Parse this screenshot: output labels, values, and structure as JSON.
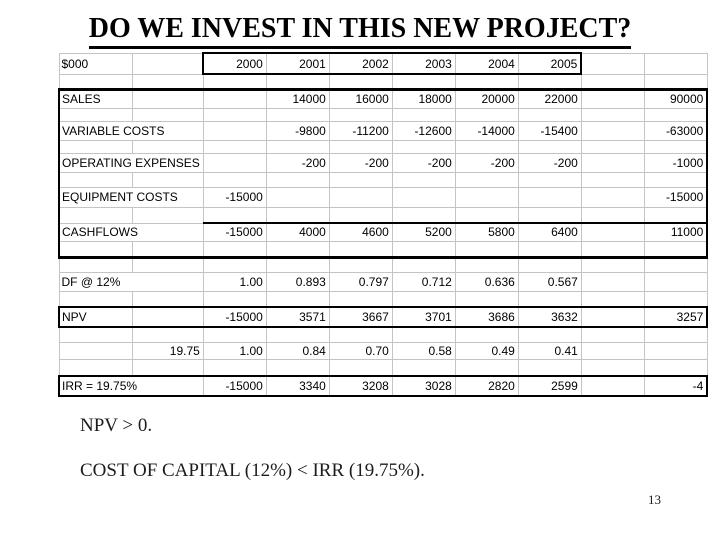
{
  "title": "DO WE INVEST IN THIS NEW PROJECT?",
  "table": {
    "rows": [
      {
        "name": "header-years",
        "values": [
          "$000",
          "",
          "2000",
          "2001",
          "2002",
          "2003",
          "2004",
          "2005",
          "",
          ""
        ]
      },
      {
        "name": "spacer-1",
        "values": [
          "",
          "",
          "",
          "",
          "",
          "",
          "",
          "",
          "",
          ""
        ]
      },
      {
        "name": "sales",
        "values": [
          "SALES",
          "",
          "",
          "14000",
          "16000",
          "18000",
          "20000",
          "22000",
          "",
          "90000"
        ]
      },
      {
        "name": "spacer-2",
        "values": [
          "",
          "",
          "",
          "",
          "",
          "",
          "",
          "",
          "",
          ""
        ]
      },
      {
        "name": "variable-costs",
        "values": [
          "VARIABLE COSTS",
          "",
          "",
          "-9800",
          "-11200",
          "-12600",
          "-14000",
          "-15400",
          "",
          "-63000"
        ]
      },
      {
        "name": "spacer-3",
        "values": [
          "",
          "",
          "",
          "",
          "",
          "",
          "",
          "",
          "",
          ""
        ]
      },
      {
        "name": "operating-expenses",
        "values": [
          "OPERATING EXPENSES",
          "",
          "",
          "-200",
          "-200",
          "-200",
          "-200",
          "-200",
          "",
          "-1000"
        ]
      },
      {
        "name": "spacer-4",
        "values": [
          "",
          "",
          "",
          "",
          "",
          "",
          "",
          "",
          "",
          ""
        ]
      },
      {
        "name": "equipment-costs",
        "values": [
          "EQUIPMENT COSTS",
          "",
          "-15000",
          "",
          "",
          "",
          "",
          "",
          "",
          "-15000"
        ]
      },
      {
        "name": "spacer-5",
        "values": [
          "",
          "",
          "",
          "",
          "",
          "",
          "",
          "",
          "",
          ""
        ]
      },
      {
        "name": "cashflows",
        "values": [
          "CASHFLOWS",
          "",
          "-15000",
          "4000",
          "4600",
          "5200",
          "5800",
          "6400",
          "",
          "11000"
        ]
      },
      {
        "name": "spacer-6",
        "values": [
          "",
          "",
          "",
          "",
          "",
          "",
          "",
          "",
          "",
          ""
        ]
      },
      {
        "name": "spacer-7",
        "values": [
          "",
          "",
          "",
          "",
          "",
          "",
          "",
          "",
          "",
          ""
        ]
      },
      {
        "name": "discount-factor",
        "values": [
          "DF @ 12%",
          "",
          "1.00",
          "0.893",
          "0.797",
          "0.712",
          "0.636",
          "0.567",
          "",
          ""
        ]
      },
      {
        "name": "spacer-8",
        "values": [
          "",
          "",
          "",
          "",
          "",
          "",
          "",
          "",
          "",
          ""
        ]
      },
      {
        "name": "npv",
        "values": [
          "NPV",
          "",
          "-15000",
          "3571",
          "3667",
          "3701",
          "3686",
          "3632",
          "",
          "3257"
        ]
      },
      {
        "name": "spacer-9",
        "values": [
          "",
          "",
          "",
          "",
          "",
          "",
          "",
          "",
          "",
          ""
        ]
      },
      {
        "name": "irr-factors",
        "values": [
          "",
          "19.75",
          "1.00",
          "0.84",
          "0.70",
          "0.58",
          "0.49",
          "0.41",
          "",
          ""
        ]
      },
      {
        "name": "spacer-10",
        "values": [
          "",
          "",
          "",
          "",
          "",
          "",
          "",
          "",
          "",
          ""
        ]
      },
      {
        "name": "irr",
        "values": [
          "IRR = 19.75%",
          "",
          "-15000",
          "3340",
          "3208",
          "3028",
          "2820",
          "2599",
          "",
          "-4"
        ]
      }
    ]
  },
  "conclusions": [
    "NPV > 0.",
    "COST OF CAPITAL (12%) < IRR (19.75%)."
  ],
  "page_number": "13",
  "colors": {
    "grid_line": "#c4c4c4",
    "table_border": "#000000",
    "text": "#000000",
    "background": "#ffffff"
  }
}
